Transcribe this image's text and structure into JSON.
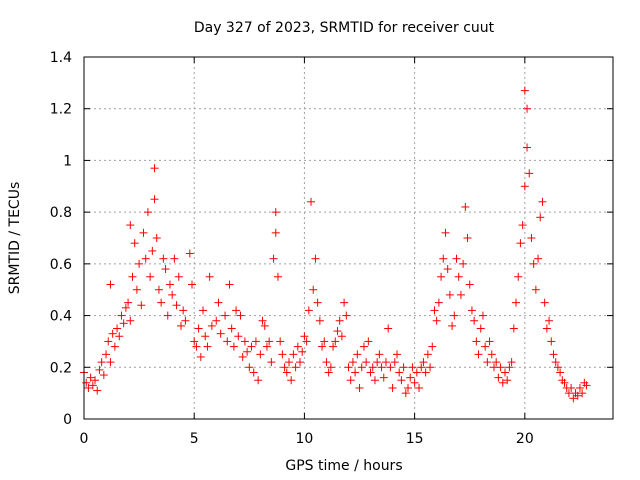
{
  "chart_data": {
    "type": "scatter",
    "title": "Day 327 of 2023, SRMTID for receiver cuut",
    "xlabel": "GPS time / hours",
    "ylabel": "SRMTID / TECUs",
    "xlim": [
      0,
      24
    ],
    "ylim": [
      0,
      1.4
    ],
    "xticks": [
      0,
      5,
      10,
      15,
      20
    ],
    "xtick_labels": [
      "0",
      "5",
      "10",
      "15",
      "20"
    ],
    "yticks": [
      0,
      0.2,
      0.4,
      0.6,
      0.8,
      1.0,
      1.2,
      1.4
    ],
    "ytick_labels": [
      "0",
      "0.2",
      "0.4",
      "0.6",
      "0.8",
      "1",
      "1.2",
      "1.4"
    ],
    "grid": true,
    "marker": "+",
    "color": "#ff0000",
    "series": [
      {
        "name": "SRMTID",
        "points": [
          [
            0.0,
            0.18
          ],
          [
            0.1,
            0.14
          ],
          [
            0.2,
            0.12
          ],
          [
            0.3,
            0.16
          ],
          [
            0.4,
            0.13
          ],
          [
            0.5,
            0.15
          ],
          [
            0.6,
            0.11
          ],
          [
            0.7,
            0.19
          ],
          [
            0.8,
            0.22
          ],
          [
            0.9,
            0.17
          ],
          [
            1.0,
            0.25
          ],
          [
            1.1,
            0.3
          ],
          [
            1.2,
            0.22
          ],
          [
            1.3,
            0.33
          ],
          [
            1.2,
            0.52
          ],
          [
            1.4,
            0.28
          ],
          [
            1.5,
            0.35
          ],
          [
            1.6,
            0.32
          ],
          [
            1.7,
            0.4
          ],
          [
            1.8,
            0.37
          ],
          [
            1.9,
            0.43
          ],
          [
            2.0,
            0.45
          ],
          [
            2.1,
            0.38
          ],
          [
            2.2,
            0.55
          ],
          [
            2.1,
            0.75
          ],
          [
            2.3,
            0.68
          ],
          [
            2.4,
            0.5
          ],
          [
            2.5,
            0.6
          ],
          [
            2.6,
            0.44
          ],
          [
            2.7,
            0.72
          ],
          [
            2.8,
            0.62
          ],
          [
            2.9,
            0.8
          ],
          [
            3.0,
            0.55
          ],
          [
            3.1,
            0.65
          ],
          [
            3.2,
            0.97
          ],
          [
            3.2,
            0.85
          ],
          [
            3.3,
            0.7
          ],
          [
            3.4,
            0.5
          ],
          [
            3.5,
            0.45
          ],
          [
            3.6,
            0.62
          ],
          [
            3.7,
            0.58
          ],
          [
            3.8,
            0.4
          ],
          [
            3.9,
            0.52
          ],
          [
            4.0,
            0.48
          ],
          [
            4.1,
            0.62
          ],
          [
            4.2,
            0.44
          ],
          [
            4.3,
            0.55
          ],
          [
            4.4,
            0.36
          ],
          [
            4.5,
            0.42
          ],
          [
            4.6,
            0.38
          ],
          [
            4.8,
            0.64
          ],
          [
            4.9,
            0.52
          ],
          [
            5.0,
            0.3
          ],
          [
            5.1,
            0.28
          ],
          [
            5.2,
            0.35
          ],
          [
            5.3,
            0.24
          ],
          [
            5.4,
            0.42
          ],
          [
            5.5,
            0.32
          ],
          [
            5.6,
            0.28
          ],
          [
            5.7,
            0.55
          ],
          [
            5.8,
            0.36
          ],
          [
            6.0,
            0.38
          ],
          [
            6.1,
            0.45
          ],
          [
            6.2,
            0.33
          ],
          [
            6.4,
            0.4
          ],
          [
            6.5,
            0.3
          ],
          [
            6.6,
            0.52
          ],
          [
            6.7,
            0.35
          ],
          [
            6.8,
            0.28
          ],
          [
            6.9,
            0.42
          ],
          [
            7.0,
            0.32
          ],
          [
            7.1,
            0.4
          ],
          [
            7.2,
            0.24
          ],
          [
            7.3,
            0.3
          ],
          [
            7.4,
            0.26
          ],
          [
            7.5,
            0.2
          ],
          [
            7.6,
            0.28
          ],
          [
            7.7,
            0.18
          ],
          [
            7.8,
            0.3
          ],
          [
            7.9,
            0.15
          ],
          [
            8.0,
            0.25
          ],
          [
            8.1,
            0.38
          ],
          [
            8.2,
            0.36
          ],
          [
            8.3,
            0.28
          ],
          [
            8.4,
            0.3
          ],
          [
            8.5,
            0.22
          ],
          [
            8.6,
            0.62
          ],
          [
            8.7,
            0.8
          ],
          [
            8.7,
            0.72
          ],
          [
            8.8,
            0.55
          ],
          [
            8.9,
            0.3
          ],
          [
            9.0,
            0.25
          ],
          [
            9.1,
            0.2
          ],
          [
            9.2,
            0.18
          ],
          [
            9.3,
            0.22
          ],
          [
            9.4,
            0.15
          ],
          [
            9.5,
            0.25
          ],
          [
            9.6,
            0.2
          ],
          [
            9.7,
            0.28
          ],
          [
            9.8,
            0.22
          ],
          [
            9.9,
            0.26
          ],
          [
            10.0,
            0.32
          ],
          [
            10.1,
            0.3
          ],
          [
            10.2,
            0.42
          ],
          [
            10.3,
            0.84
          ],
          [
            10.4,
            0.5
          ],
          [
            10.5,
            0.62
          ],
          [
            10.6,
            0.45
          ],
          [
            10.7,
            0.38
          ],
          [
            10.8,
            0.28
          ],
          [
            10.9,
            0.3
          ],
          [
            11.0,
            0.22
          ],
          [
            11.1,
            0.18
          ],
          [
            11.2,
            0.2
          ],
          [
            11.3,
            0.28
          ],
          [
            11.4,
            0.3
          ],
          [
            11.5,
            0.34
          ],
          [
            11.6,
            0.38
          ],
          [
            11.7,
            0.32
          ],
          [
            11.8,
            0.45
          ],
          [
            11.9,
            0.4
          ],
          [
            12.0,
            0.2
          ],
          [
            12.1,
            0.15
          ],
          [
            12.2,
            0.22
          ],
          [
            12.3,
            0.18
          ],
          [
            12.4,
            0.25
          ],
          [
            12.5,
            0.12
          ],
          [
            12.6,
            0.2
          ],
          [
            12.7,
            0.28
          ],
          [
            12.8,
            0.22
          ],
          [
            12.9,
            0.3
          ],
          [
            13.0,
            0.18
          ],
          [
            13.1,
            0.2
          ],
          [
            13.2,
            0.15
          ],
          [
            13.3,
            0.22
          ],
          [
            13.4,
            0.25
          ],
          [
            13.5,
            0.2
          ],
          [
            13.6,
            0.16
          ],
          [
            13.7,
            0.22
          ],
          [
            13.8,
            0.35
          ],
          [
            13.9,
            0.2
          ],
          [
            14.0,
            0.12
          ],
          [
            14.1,
            0.22
          ],
          [
            14.2,
            0.25
          ],
          [
            14.3,
            0.18
          ],
          [
            14.4,
            0.15
          ],
          [
            14.5,
            0.2
          ],
          [
            14.6,
            0.1
          ],
          [
            14.7,
            0.12
          ],
          [
            14.8,
            0.16
          ],
          [
            14.9,
            0.2
          ],
          [
            15.0,
            0.14
          ],
          [
            15.1,
            0.18
          ],
          [
            15.2,
            0.12
          ],
          [
            15.3,
            0.2
          ],
          [
            15.4,
            0.22
          ],
          [
            15.5,
            0.18
          ],
          [
            15.6,
            0.25
          ],
          [
            15.7,
            0.2
          ],
          [
            15.8,
            0.28
          ],
          [
            15.9,
            0.42
          ],
          [
            16.0,
            0.38
          ],
          [
            16.1,
            0.45
          ],
          [
            16.2,
            0.55
          ],
          [
            16.3,
            0.62
          ],
          [
            16.4,
            0.72
          ],
          [
            16.5,
            0.58
          ],
          [
            16.6,
            0.48
          ],
          [
            16.7,
            0.36
          ],
          [
            16.8,
            0.4
          ],
          [
            16.9,
            0.62
          ],
          [
            17.0,
            0.55
          ],
          [
            17.1,
            0.48
          ],
          [
            17.2,
            0.6
          ],
          [
            17.3,
            0.82
          ],
          [
            17.4,
            0.7
          ],
          [
            17.5,
            0.52
          ],
          [
            17.6,
            0.42
          ],
          [
            17.7,
            0.38
          ],
          [
            17.8,
            0.3
          ],
          [
            17.9,
            0.25
          ],
          [
            18.0,
            0.35
          ],
          [
            18.1,
            0.4
          ],
          [
            18.2,
            0.28
          ],
          [
            18.3,
            0.22
          ],
          [
            18.4,
            0.3
          ],
          [
            18.5,
            0.25
          ],
          [
            18.6,
            0.2
          ],
          [
            18.7,
            0.22
          ],
          [
            18.8,
            0.16
          ],
          [
            18.9,
            0.2
          ],
          [
            19.0,
            0.14
          ],
          [
            19.1,
            0.18
          ],
          [
            19.2,
            0.15
          ],
          [
            19.3,
            0.2
          ],
          [
            19.4,
            0.22
          ],
          [
            19.5,
            0.35
          ],
          [
            19.6,
            0.45
          ],
          [
            19.7,
            0.55
          ],
          [
            19.8,
            0.68
          ],
          [
            19.9,
            0.75
          ],
          [
            20.0,
            0.9
          ],
          [
            20.0,
            1.27
          ],
          [
            20.1,
            1.2
          ],
          [
            20.1,
            1.05
          ],
          [
            20.2,
            0.95
          ],
          [
            20.3,
            0.7
          ],
          [
            20.4,
            0.6
          ],
          [
            20.5,
            0.5
          ],
          [
            20.6,
            0.62
          ],
          [
            20.7,
            0.78
          ],
          [
            20.8,
            0.84
          ],
          [
            20.9,
            0.45
          ],
          [
            21.0,
            0.35
          ],
          [
            21.1,
            0.38
          ],
          [
            21.2,
            0.3
          ],
          [
            21.3,
            0.25
          ],
          [
            21.4,
            0.22
          ],
          [
            21.5,
            0.2
          ],
          [
            21.6,
            0.18
          ],
          [
            21.7,
            0.15
          ],
          [
            21.8,
            0.14
          ],
          [
            21.9,
            0.12
          ],
          [
            22.0,
            0.1
          ],
          [
            22.1,
            0.12
          ],
          [
            22.2,
            0.08
          ],
          [
            22.3,
            0.1
          ],
          [
            22.4,
            0.09
          ],
          [
            22.5,
            0.12
          ],
          [
            22.6,
            0.1
          ],
          [
            22.7,
            0.14
          ],
          [
            22.8,
            0.13
          ]
        ]
      }
    ]
  }
}
